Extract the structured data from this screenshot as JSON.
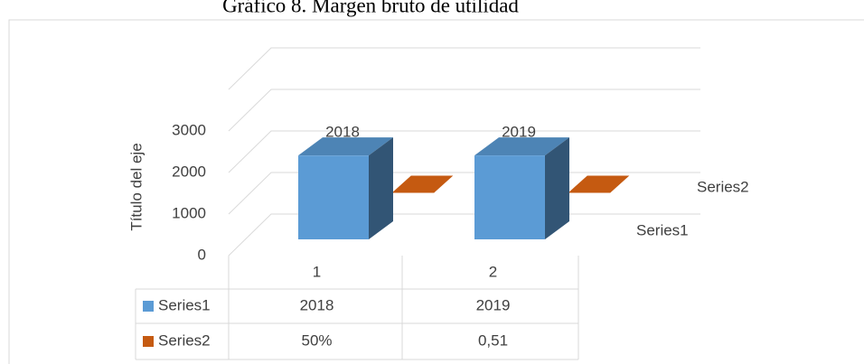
{
  "chart_data": {
    "type": "bar3d",
    "title": "Gráfico 8. Margen bruto de utilidad",
    "y_label": "Título del eje",
    "categories": [
      "1",
      "2"
    ],
    "series": [
      {
        "name": "Series1",
        "color": "#5b9bd5",
        "values": [
          2018,
          2019
        ]
      },
      {
        "name": "Series2",
        "color": "#c55a11",
        "values": [
          0.5,
          0.51
        ],
        "value_labels": [
          "50%",
          "0,51"
        ]
      }
    ],
    "ylim": [
      0,
      4000
    ],
    "yticks": [
      0,
      1000,
      2000,
      3000
    ],
    "grid": true,
    "data_table": true
  }
}
